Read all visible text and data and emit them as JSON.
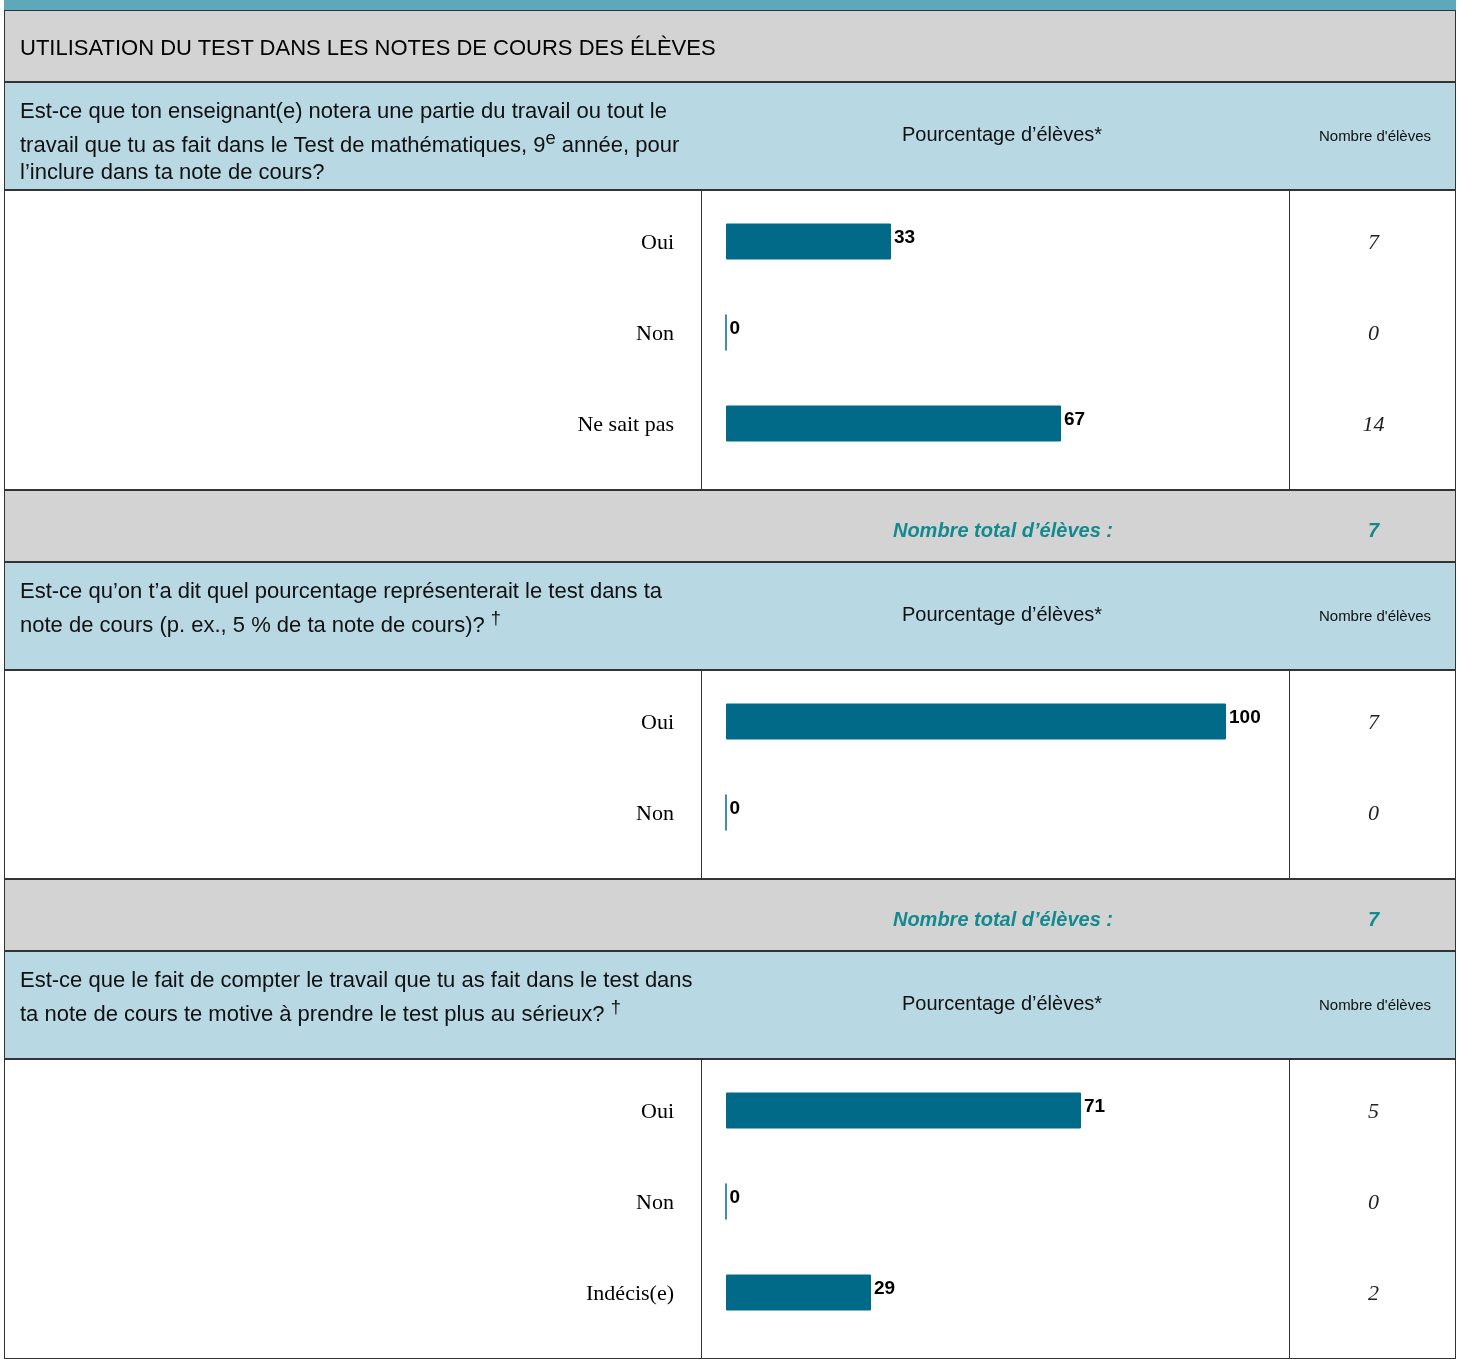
{
  "chart_data": [
    {
      "type": "bar",
      "orientation": "horizontal",
      "title": "UTILISATION DU TEST DANS LES NOTES DE COURS DES ÉLÈVES",
      "subtitle": "Est-ce que ton enseignant(e) notera une partie du travail ou tout le travail que tu as fait dans le Test de mathématiques, 9$^{e}$ année, pour l’inclure dans ta note de cours?",
      "xlabel": "Pourcentage d’élèves*",
      "categories": [
        "Oui",
        "Non",
        "Ne sait pas"
      ],
      "values": [
        33,
        0,
        67
      ],
      "color": "#006a88",
      "tick_labels": "y",
      "data_labels": true,
      "annotations": [
        "Nombre d'élèves",
        "7",
        "0",
        "14",
        "Nombre total d’élèves :",
        "7"
      ]
    },
    {
      "type": "bar",
      "orientation": "horizontal",
      "subtitle": "Est-ce qu’on t’a dit quel pourcentage représenterait le test dans ta note de cours (p. ex., 5 % de ta note de cours)? $^{†}$",
      "xlabel": "Pourcentage d’élèves*",
      "categories": [
        "Oui",
        "Non"
      ],
      "values": [
        100,
        0
      ],
      "color": "#006a88",
      "tick_labels": "y",
      "data_labels": true,
      "annotations": [
        "Nombre d'élèves",
        "7",
        "0",
        "Nombre total d’élèves :",
        "7"
      ]
    },
    {
      "type": "bar",
      "orientation": "horizontal",
      "subtitle": "Est-ce que le fait de compter le travail que tu as fait dans le test dans ta note de cours te motive à prendre le test plus au sérieux? $^{†}$",
      "xlabel": "Pourcentage d’élèves*",
      "categories": [
        "Oui",
        "Non",
        "Indécis(e)"
      ],
      "values": [
        71,
        0,
        29
      ],
      "color": "#006a88",
      "tick_labels": "y",
      "data_labels": true,
      "annotations": [
        "Nombre d'élèves",
        "5",
        "0",
        "2"
      ]
    }
  ]
}
